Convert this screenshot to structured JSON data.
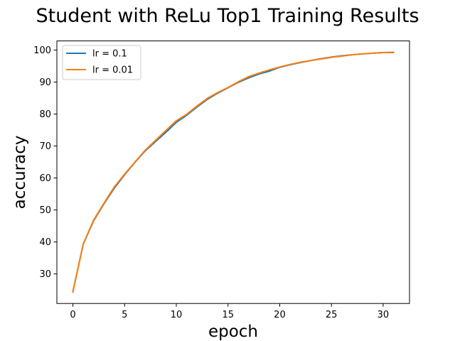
{
  "chart_data": {
    "type": "line",
    "title": "Student with ReLu Top1 Training Results",
    "xlabel": "epoch",
    "ylabel": "accuracy",
    "xlim": [
      -1.55,
      32.55
    ],
    "ylim": [
      20.75,
      102.85
    ],
    "xticks": [
      0,
      5,
      10,
      15,
      20,
      25,
      30
    ],
    "yticks": [
      30,
      40,
      50,
      60,
      70,
      80,
      90,
      100
    ],
    "grid": false,
    "legend_position": "top-left",
    "x": [
      0,
      1,
      2,
      3,
      4,
      5,
      6,
      7,
      8,
      9,
      10,
      11,
      12,
      13,
      14,
      15,
      16,
      17,
      18,
      19,
      20,
      21,
      22,
      23,
      24,
      25,
      26,
      27,
      28,
      29,
      30,
      31
    ],
    "series": [
      {
        "name": "lr = 0.1",
        "color": "#1f77b4",
        "values": [
          24.5,
          39.3,
          46.6,
          51.9,
          56.8,
          61.0,
          64.9,
          68.5,
          71.4,
          74.3,
          77.4,
          79.6,
          82.2,
          84.6,
          86.5,
          88.2,
          89.9,
          91.3,
          92.5,
          93.4,
          94.6,
          95.4,
          96.1,
          96.7,
          97.3,
          97.8,
          98.2,
          98.5,
          98.8,
          99.0,
          99.2,
          99.2
        ]
      },
      {
        "name": "lr = 0.01",
        "color": "#ff7f0e",
        "values": [
          24.3,
          39.4,
          46.8,
          52.1,
          57.2,
          61.2,
          65.0,
          68.7,
          71.8,
          74.9,
          77.9,
          79.9,
          82.5,
          84.9,
          86.7,
          88.3,
          90.1,
          91.7,
          92.8,
          93.8,
          94.7,
          95.5,
          96.2,
          96.7,
          97.2,
          97.7,
          98.1,
          98.5,
          98.8,
          99.0,
          99.2,
          99.3
        ]
      }
    ]
  }
}
